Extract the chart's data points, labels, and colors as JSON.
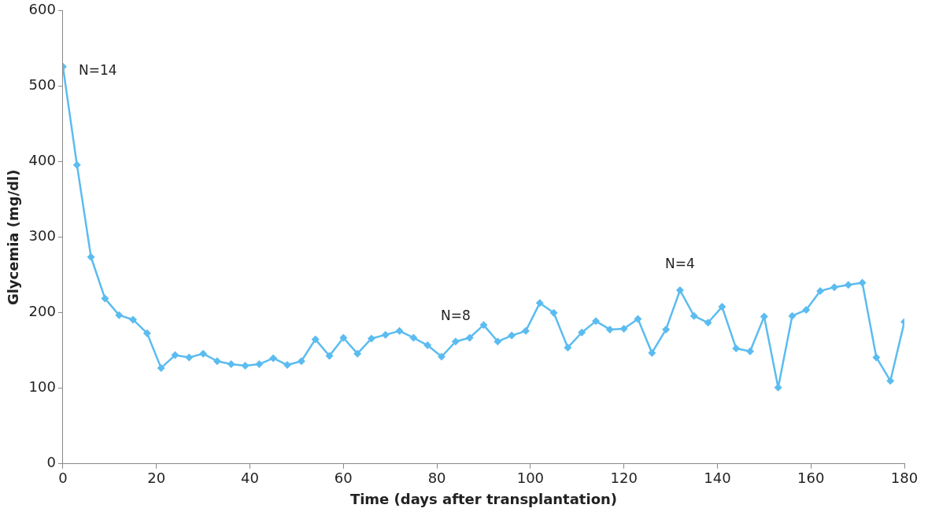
{
  "chart_data": {
    "type": "line",
    "xlabel": "Time (days after transplantation)",
    "ylabel": "Glycemia (mg/dl)",
    "x": [
      0,
      3,
      6,
      9,
      12,
      15,
      18,
      21,
      24,
      27,
      30,
      33,
      36,
      39,
      42,
      45,
      48,
      51,
      54,
      57,
      60,
      63,
      66,
      69,
      72,
      75,
      78,
      81,
      84,
      87,
      90,
      93,
      96,
      99,
      102,
      105,
      108,
      111,
      114,
      117,
      120,
      123,
      126,
      129,
      132,
      135,
      138,
      141,
      144,
      147,
      150,
      153,
      156,
      159,
      162,
      165,
      168,
      171,
      174,
      177,
      180
    ],
    "series": [
      {
        "color": "#5bbcf0",
        "values": [
          526,
          396,
          274,
          219,
          197,
          191,
          173,
          127,
          144,
          141,
          146,
          136,
          132,
          130,
          132,
          140,
          131,
          136,
          165,
          143,
          167,
          146,
          166,
          171,
          176,
          167,
          157,
          142,
          162,
          167,
          184,
          162,
          170,
          176,
          213,
          200,
          154,
          174,
          189,
          178,
          179,
          192,
          147,
          178,
          230,
          196,
          187,
          208,
          153,
          149,
          195,
          101,
          196,
          204,
          229,
          234,
          237,
          240,
          141,
          110,
          188
        ]
      }
    ],
    "xlim": [
      0,
      180
    ],
    "xticks": [
      0,
      20,
      40,
      60,
      80,
      100,
      120,
      140,
      160,
      180
    ],
    "ylim": [
      0,
      600
    ],
    "yticks": [
      0,
      100,
      200,
      300,
      400,
      500,
      600
    ],
    "grid": false,
    "legend": false,
    "marker": "diamond",
    "line_style": "solid",
    "annotations": [
      {
        "text": "N=14",
        "x": 0,
        "y": 526
      },
      {
        "text": "N=8",
        "x": 84,
        "y": 162
      },
      {
        "text": "N=4",
        "x": 132,
        "y": 230
      }
    ]
  }
}
